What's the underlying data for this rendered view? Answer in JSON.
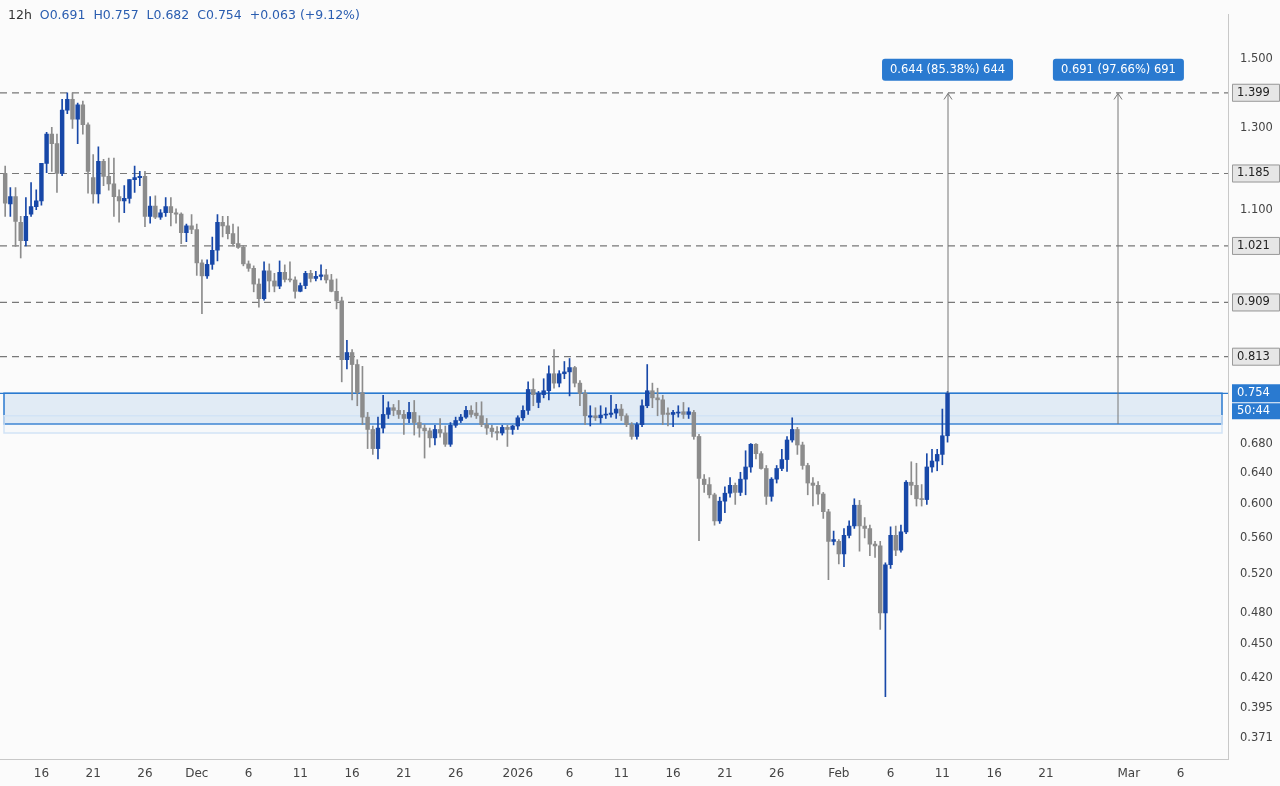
{
  "chart_data": {
    "type": "candlestick",
    "title": "12h",
    "subtitle": "O0.691  H0.757  L0.682  C0.754  +0.063 (+9.12%)",
    "x": [
      "2025-11-12T12:00",
      "2025-11-13",
      "2025-11-13T12:00",
      "2025-11-14",
      "2025-11-14T12:00",
      "2025-11-15",
      "2025-11-15T12:00",
      "2025-11-16",
      "2025-11-16T12:00",
      "2025-11-17",
      "2025-11-17T12:00",
      "2025-11-18",
      "2025-11-18T12:00",
      "2025-11-19",
      "2025-11-19T12:00",
      "2025-11-20",
      "2025-11-20T12:00",
      "2025-11-21",
      "2025-11-21T12:00",
      "2025-11-22",
      "2025-11-22T12:00",
      "2025-11-23",
      "2025-11-23T12:00",
      "2025-11-24",
      "2025-11-24T12:00",
      "2025-11-25",
      "2025-11-25T12:00",
      "2025-11-26",
      "2025-11-26T12:00",
      "2025-11-27",
      "2025-11-27T12:00",
      "2025-11-28",
      "2025-11-28T12:00",
      "2025-11-29",
      "2025-11-29T12:00",
      "2025-11-30",
      "2025-11-30T12:00",
      "2025-12-01",
      "2025-12-01T12:00",
      "2025-12-02",
      "2025-12-02T12:00",
      "2025-12-03",
      "2025-12-03T12:00",
      "2025-12-04",
      "2025-12-04T12:00",
      "2025-12-05",
      "2025-12-05T12:00",
      "2025-12-06",
      "2025-12-06T12:00",
      "2025-12-07",
      "2025-12-07T12:00",
      "2025-12-08",
      "2025-12-08T12:00",
      "2025-12-09",
      "2025-12-09T12:00",
      "2025-12-10",
      "2025-12-10T12:00",
      "2025-12-11",
      "2025-12-11T12:00",
      "2025-12-12",
      "2025-12-12T12:00",
      "2025-12-13",
      "2025-12-13T12:00",
      "2025-12-14",
      "2025-12-14T12:00",
      "2025-12-15",
      "2025-12-15T12:00",
      "2025-12-16",
      "2025-12-16T12:00",
      "2025-12-17",
      "2025-12-17T12:00",
      "2025-12-18",
      "2025-12-18T12:00",
      "2025-12-19",
      "2025-12-19T12:00",
      "2025-12-20",
      "2025-12-20T12:00",
      "2025-12-21",
      "2025-12-21T12:00",
      "2025-12-22",
      "2025-12-22T12:00",
      "2025-12-23",
      "2025-12-23T12:00",
      "2025-12-24",
      "2025-12-24T12:00",
      "2025-12-25",
      "2025-12-25T12:00",
      "2025-12-26",
      "2025-12-26T12:00",
      "2025-12-27",
      "2025-12-27T12:00",
      "2025-12-28",
      "2025-12-28T12:00",
      "2025-12-29",
      "2025-12-29T12:00",
      "2025-12-30",
      "2025-12-30T12:00",
      "2025-12-31",
      "2025-12-31T12:00",
      "2026-01-01",
      "2026-01-01T12:00",
      "2026-01-02",
      "2026-01-02T12:00",
      "2026-01-03",
      "2026-01-03T12:00",
      "2026-01-04",
      "2026-01-04T12:00",
      "2026-01-05",
      "2026-01-05T12:00",
      "2026-01-06",
      "2026-01-06T12:00",
      "2026-01-07",
      "2026-01-07T12:00",
      "2026-01-08",
      "2026-01-08T12:00",
      "2026-01-09",
      "2026-01-09T12:00",
      "2026-01-10",
      "2026-01-10T12:00",
      "2026-01-11",
      "2026-01-11T12:00",
      "2026-01-12",
      "2026-01-12T12:00",
      "2026-01-13",
      "2026-01-13T12:00",
      "2026-01-14",
      "2026-01-14T12:00",
      "2026-01-15",
      "2026-01-15T12:00",
      "2026-01-16",
      "2026-01-16T12:00",
      "2026-01-17",
      "2026-01-17T12:00",
      "2026-01-18",
      "2026-01-18T12:00",
      "2026-01-19",
      "2026-01-19T12:00",
      "2026-01-20",
      "2026-01-20T12:00",
      "2026-01-21",
      "2026-01-21T12:00",
      "2026-01-22",
      "2026-01-22T12:00",
      "2026-01-23",
      "2026-01-23T12:00",
      "2026-01-24",
      "2026-01-24T12:00",
      "2026-01-25",
      "2026-01-25T12:00",
      "2026-01-26",
      "2026-01-26T12:00",
      "2026-01-27",
      "2026-01-27T12:00",
      "2026-01-28",
      "2026-01-28T12:00",
      "2026-01-29",
      "2026-01-29T12:00",
      "2026-01-30",
      "2026-01-30T12:00",
      "2026-01-31",
      "2026-01-31T12:00",
      "2026-02-01",
      "2026-02-01T12:00",
      "2026-02-02",
      "2026-02-02T12:00",
      "2026-02-03",
      "2026-02-03T12:00",
      "2026-02-04",
      "2026-02-04T12:00",
      "2026-02-05",
      "2026-02-05T12:00",
      "2026-02-06",
      "2026-02-06T12:00",
      "2026-02-07",
      "2026-02-07T12:00",
      "2026-02-08",
      "2026-02-08T12:00",
      "2026-02-09",
      "2026-02-09T12:00",
      "2026-02-10",
      "2026-02-10T12:00",
      "2026-02-11",
      "2026-02-11T12:00"
    ],
    "ohlc": [
      [
        1.185,
        1.203,
        1.085,
        1.115
      ],
      [
        1.113,
        1.151,
        1.085,
        1.13
      ],
      [
        1.13,
        1.151,
        1.02,
        1.074
      ],
      [
        1.072,
        1.085,
        0.996,
        1.032
      ],
      [
        1.032,
        1.128,
        1.021,
        1.085
      ],
      [
        1.09,
        1.163,
        1.085,
        1.107
      ],
      [
        1.107,
        1.146,
        1.1,
        1.12
      ],
      [
        1.12,
        1.21,
        1.11,
        1.21
      ],
      [
        1.21,
        1.29,
        1.187,
        1.285
      ],
      [
        1.285,
        1.303,
        1.19,
        1.26
      ],
      [
        1.26,
        1.285,
        1.14,
        1.185
      ],
      [
        1.185,
        1.38,
        1.18,
        1.35
      ],
      [
        1.35,
        1.399,
        1.34,
        1.38
      ],
      [
        1.38,
        1.399,
        1.3,
        1.325
      ],
      [
        1.325,
        1.37,
        1.26,
        1.365
      ],
      [
        1.365,
        1.375,
        1.285,
        1.31
      ],
      [
        1.31,
        1.315,
        1.138,
        1.19
      ],
      [
        1.175,
        1.232,
        1.115,
        1.136
      ],
      [
        1.136,
        1.252,
        1.115,
        1.215
      ],
      [
        1.215,
        1.22,
        1.156,
        1.178
      ],
      [
        1.178,
        1.223,
        1.145,
        1.16
      ],
      [
        1.16,
        1.223,
        1.085,
        1.13
      ],
      [
        1.13,
        1.146,
        1.072,
        1.12
      ],
      [
        1.12,
        1.156,
        1.093,
        1.126
      ],
      [
        1.126,
        1.17,
        1.115,
        1.17
      ],
      [
        1.17,
        1.203,
        1.14,
        1.175
      ],
      [
        1.175,
        1.19,
        1.156,
        1.178
      ],
      [
        1.178,
        1.19,
        1.062,
        1.085
      ],
      [
        1.085,
        1.13,
        1.07,
        1.108
      ],
      [
        1.108,
        1.132,
        1.08,
        1.083
      ],
      [
        1.083,
        1.1,
        1.078,
        1.093
      ],
      [
        1.093,
        1.128,
        1.085,
        1.107
      ],
      [
        1.107,
        1.128,
        1.064,
        1.093
      ],
      [
        1.093,
        1.102,
        1.07,
        1.09
      ],
      [
        1.09,
        1.093,
        1.026,
        1.049
      ],
      [
        1.049,
        1.068,
        1.03,
        1.064
      ],
      [
        1.064,
        1.089,
        1.047,
        1.056
      ],
      [
        1.056,
        1.068,
        0.961,
        0.986
      ],
      [
        0.986,
        0.992,
        0.888,
        0.96
      ],
      [
        0.96,
        0.992,
        0.955,
        0.983
      ],
      [
        0.983,
        1.04,
        0.973,
        1.012
      ],
      [
        1.012,
        1.089,
        0.99,
        1.072
      ],
      [
        1.072,
        1.085,
        1.04,
        1.064
      ],
      [
        1.064,
        1.085,
        1.036,
        1.047
      ],
      [
        1.047,
        1.068,
        1.021,
        1.026
      ],
      [
        1.026,
        1.062,
        1.016,
        1.018
      ],
      [
        1.018,
        1.022,
        0.98,
        0.984
      ],
      [
        0.984,
        0.99,
        0.969,
        0.975
      ],
      [
        0.975,
        0.98,
        0.929,
        0.944
      ],
      [
        0.944,
        0.954,
        0.9,
        0.916
      ],
      [
        0.916,
        0.988,
        0.913,
        0.97
      ],
      [
        0.97,
        0.984,
        0.929,
        0.95
      ],
      [
        0.95,
        0.965,
        0.929,
        0.94
      ],
      [
        0.94,
        0.99,
        0.935,
        0.967
      ],
      [
        0.967,
        0.982,
        0.948,
        0.953
      ],
      [
        0.953,
        0.988,
        0.948,
        0.952
      ],
      [
        0.952,
        0.958,
        0.917,
        0.93
      ],
      [
        0.93,
        0.946,
        0.929,
        0.941
      ],
      [
        0.941,
        0.969,
        0.935,
        0.965
      ],
      [
        0.965,
        0.971,
        0.948,
        0.955
      ],
      [
        0.955,
        0.969,
        0.95,
        0.959
      ],
      [
        0.959,
        0.982,
        0.952,
        0.962
      ],
      [
        0.962,
        0.973,
        0.946,
        0.952
      ],
      [
        0.952,
        0.963,
        0.929,
        0.93
      ],
      [
        0.93,
        0.954,
        0.897,
        0.912
      ],
      [
        0.912,
        0.919,
        0.772,
        0.808
      ],
      [
        0.808,
        0.841,
        0.793,
        0.82
      ],
      [
        0.82,
        0.825,
        0.744,
        0.8
      ],
      [
        0.8,
        0.808,
        0.735,
        0.755
      ],
      [
        0.755,
        0.797,
        0.707,
        0.718
      ],
      [
        0.718,
        0.725,
        0.673,
        0.7
      ],
      [
        0.7,
        0.705,
        0.665,
        0.673
      ],
      [
        0.673,
        0.718,
        0.659,
        0.702
      ],
      [
        0.702,
        0.751,
        0.695,
        0.722
      ],
      [
        0.722,
        0.741,
        0.716,
        0.732
      ],
      [
        0.732,
        0.737,
        0.72,
        0.728
      ],
      [
        0.728,
        0.743,
        0.716,
        0.722
      ],
      [
        0.722,
        0.728,
        0.693,
        0.716
      ],
      [
        0.716,
        0.74,
        0.71,
        0.725
      ],
      [
        0.725,
        0.743,
        0.692,
        0.71
      ],
      [
        0.71,
        0.72,
        0.689,
        0.702
      ],
      [
        0.702,
        0.707,
        0.66,
        0.698
      ],
      [
        0.698,
        0.702,
        0.675,
        0.688
      ],
      [
        0.688,
        0.706,
        0.678,
        0.7
      ],
      [
        0.7,
        0.716,
        0.689,
        0.695
      ],
      [
        0.695,
        0.705,
        0.676,
        0.679
      ],
      [
        0.679,
        0.71,
        0.676,
        0.706
      ],
      [
        0.706,
        0.718,
        0.703,
        0.713
      ],
      [
        0.713,
        0.722,
        0.71,
        0.718
      ],
      [
        0.718,
        0.734,
        0.716,
        0.728
      ],
      [
        0.728,
        0.735,
        0.718,
        0.722
      ],
      [
        0.724,
        0.74,
        0.716,
        0.72
      ],
      [
        0.72,
        0.741,
        0.704,
        0.707
      ],
      [
        0.707,
        0.716,
        0.693,
        0.702
      ],
      [
        0.702,
        0.706,
        0.689,
        0.697
      ],
      [
        0.697,
        0.704,
        0.685,
        0.695
      ],
      [
        0.695,
        0.706,
        0.692,
        0.703
      ],
      [
        0.703,
        0.706,
        0.676,
        0.7
      ],
      [
        0.7,
        0.706,
        0.693,
        0.705
      ],
      [
        0.705,
        0.72,
        0.7,
        0.717
      ],
      [
        0.717,
        0.735,
        0.713,
        0.728
      ],
      [
        0.728,
        0.772,
        0.722,
        0.76
      ],
      [
        0.76,
        0.777,
        0.735,
        0.752
      ],
      [
        0.74,
        0.757,
        0.732,
        0.754
      ],
      [
        0.752,
        0.777,
        0.747,
        0.758
      ],
      [
        0.758,
        0.798,
        0.744,
        0.785
      ],
      [
        0.785,
        0.825,
        0.762,
        0.77
      ],
      [
        0.77,
        0.79,
        0.764,
        0.785
      ],
      [
        0.785,
        0.805,
        0.777,
        0.788
      ],
      [
        0.788,
        0.81,
        0.75,
        0.795
      ],
      [
        0.795,
        0.797,
        0.764,
        0.77
      ],
      [
        0.77,
        0.774,
        0.735,
        0.754
      ],
      [
        0.754,
        0.759,
        0.707,
        0.72
      ],
      [
        0.718,
        0.735,
        0.705,
        0.72
      ],
      [
        0.72,
        0.732,
        0.713,
        0.717
      ],
      [
        0.717,
        0.735,
        0.709,
        0.721
      ],
      [
        0.721,
        0.732,
        0.716,
        0.722
      ],
      [
        0.722,
        0.751,
        0.718,
        0.724
      ],
      [
        0.724,
        0.737,
        0.716,
        0.73
      ],
      [
        0.73,
        0.737,
        0.713,
        0.72
      ],
      [
        0.72,
        0.723,
        0.704,
        0.707
      ],
      [
        0.707,
        0.71,
        0.686,
        0.69
      ],
      [
        0.69,
        0.71,
        0.686,
        0.707
      ],
      [
        0.707,
        0.744,
        0.704,
        0.735
      ],
      [
        0.735,
        0.8,
        0.732,
        0.758
      ],
      [
        0.758,
        0.77,
        0.732,
        0.747
      ],
      [
        0.747,
        0.762,
        0.72,
        0.744
      ],
      [
        0.744,
        0.751,
        0.707,
        0.722
      ],
      [
        0.724,
        0.732,
        0.705,
        0.722
      ],
      [
        0.722,
        0.728,
        0.704,
        0.725
      ],
      [
        0.724,
        0.735,
        0.718,
        0.725
      ],
      [
        0.726,
        0.74,
        0.716,
        0.722
      ],
      [
        0.722,
        0.732,
        0.716,
        0.726
      ],
      [
        0.725,
        0.728,
        0.686,
        0.69
      ],
      [
        0.69,
        0.693,
        0.557,
        0.633
      ],
      [
        0.632,
        0.638,
        0.615,
        0.625
      ],
      [
        0.625,
        0.634,
        0.608,
        0.612
      ],
      [
        0.612,
        0.614,
        0.575,
        0.58
      ],
      [
        0.58,
        0.609,
        0.577,
        0.604
      ],
      [
        0.604,
        0.622,
        0.59,
        0.614
      ],
      [
        0.614,
        0.634,
        0.609,
        0.624
      ],
      [
        0.624,
        0.627,
        0.6,
        0.615
      ],
      [
        0.615,
        0.641,
        0.611,
        0.632
      ],
      [
        0.632,
        0.67,
        0.612,
        0.648
      ],
      [
        0.648,
        0.68,
        0.641,
        0.679
      ],
      [
        0.679,
        0.68,
        0.659,
        0.666
      ],
      [
        0.666,
        0.669,
        0.645,
        0.646
      ],
      [
        0.646,
        0.65,
        0.6,
        0.61
      ],
      [
        0.61,
        0.634,
        0.604,
        0.632
      ],
      [
        0.632,
        0.65,
        0.627,
        0.646
      ],
      [
        0.646,
        0.672,
        0.643,
        0.658
      ],
      [
        0.658,
        0.69,
        0.642,
        0.685
      ],
      [
        0.685,
        0.717,
        0.682,
        0.7
      ],
      [
        0.7,
        0.703,
        0.665,
        0.678
      ],
      [
        0.678,
        0.682,
        0.645,
        0.65
      ],
      [
        0.65,
        0.653,
        0.612,
        0.627
      ],
      [
        0.627,
        0.634,
        0.598,
        0.624
      ],
      [
        0.624,
        0.629,
        0.6,
        0.613
      ],
      [
        0.613,
        0.615,
        0.583,
        0.591
      ],
      [
        0.591,
        0.594,
        0.514,
        0.556
      ],
      [
        0.556,
        0.568,
        0.552,
        0.558
      ],
      [
        0.556,
        0.558,
        0.531,
        0.542
      ],
      [
        0.542,
        0.571,
        0.528,
        0.563
      ],
      [
        0.563,
        0.58,
        0.56,
        0.574
      ],
      [
        0.574,
        0.607,
        0.571,
        0.599
      ],
      [
        0.599,
        0.605,
        0.545,
        0.574
      ],
      [
        0.574,
        0.584,
        0.56,
        0.571
      ],
      [
        0.571,
        0.575,
        0.54,
        0.553
      ],
      [
        0.553,
        0.556,
        0.538,
        0.551
      ],
      [
        0.551,
        0.556,
        0.464,
        0.48
      ],
      [
        0.48,
        0.532,
        0.404,
        0.53
      ],
      [
        0.53,
        0.573,
        0.526,
        0.563
      ],
      [
        0.563,
        0.574,
        0.54,
        0.546
      ],
      [
        0.546,
        0.575,
        0.544,
        0.567
      ],
      [
        0.567,
        0.63,
        0.565,
        0.628
      ],
      [
        0.628,
        0.655,
        0.612,
        0.624
      ],
      [
        0.624,
        0.653,
        0.598,
        0.607
      ],
      [
        0.607,
        0.625,
        0.598,
        0.606
      ],
      [
        0.606,
        0.666,
        0.6,
        0.648
      ],
      [
        0.648,
        0.672,
        0.641,
        0.656
      ],
      [
        0.656,
        0.672,
        0.643,
        0.665
      ],
      [
        0.665,
        0.73,
        0.651,
        0.691
      ],
      [
        0.691,
        0.757,
        0.682,
        0.754
      ]
    ],
    "colors": [
      "#8c8c8c",
      "#1848a8",
      "#8c8c8c",
      "#8c8c8c",
      "#1848a8",
      "#1848a8",
      "#1848a8",
      "#1848a8",
      "#1848a8",
      "#8c8c8c",
      "#8c8c8c",
      "#1848a8",
      "#1848a8",
      "#8c8c8c",
      "#1848a8",
      "#8c8c8c",
      "#8c8c8c",
      "#8c8c8c",
      "#1848a8",
      "#8c8c8c",
      "#8c8c8c",
      "#8c8c8c",
      "#8c8c8c",
      "#1848a8",
      "#1848a8",
      "#1848a8",
      "#1848a8",
      "#8c8c8c",
      "#1848a8",
      "#8c8c8c",
      "#1848a8",
      "#1848a8",
      "#8c8c8c",
      "#8c8c8c",
      "#8c8c8c",
      "#1848a8",
      "#8c8c8c",
      "#8c8c8c",
      "#8c8c8c",
      "#1848a8",
      "#1848a8",
      "#1848a8",
      "#8c8c8c",
      "#8c8c8c",
      "#8c8c8c",
      "#8c8c8c",
      "#8c8c8c",
      "#8c8c8c",
      "#8c8c8c",
      "#8c8c8c",
      "#1848a8",
      "#8c8c8c",
      "#8c8c8c",
      "#1848a8",
      "#8c8c8c",
      "#8c8c8c",
      "#8c8c8c",
      "#1848a8",
      "#1848a8",
      "#8c8c8c",
      "#1848a8",
      "#1848a8",
      "#8c8c8c",
      "#8c8c8c",
      "#8c8c8c",
      "#8c8c8c",
      "#1848a8",
      "#8c8c8c",
      "#8c8c8c",
      "#8c8c8c",
      "#8c8c8c",
      "#8c8c8c",
      "#1848a8",
      "#1848a8",
      "#1848a8",
      "#8c8c8c",
      "#8c8c8c",
      "#8c8c8c",
      "#1848a8",
      "#8c8c8c",
      "#8c8c8c",
      "#8c8c8c",
      "#8c8c8c",
      "#1848a8",
      "#8c8c8c",
      "#8c8c8c",
      "#1848a8",
      "#1848a8",
      "#1848a8",
      "#1848a8",
      "#8c8c8c",
      "#8c8c8c",
      "#8c8c8c",
      "#8c8c8c",
      "#8c8c8c",
      "#8c8c8c",
      "#1848a8",
      "#8c8c8c",
      "#1848a8",
      "#1848a8",
      "#1848a8",
      "#1848a8",
      "#8c8c8c",
      "#1848a8",
      "#1848a8",
      "#1848a8",
      "#8c8c8c",
      "#1848a8",
      "#1848a8",
      "#1848a8",
      "#8c8c8c",
      "#8c8c8c",
      "#8c8c8c",
      "#1848a8",
      "#8c8c8c",
      "#1848a8",
      "#1848a8",
      "#1848a8",
      "#1848a8",
      "#8c8c8c",
      "#8c8c8c",
      "#8c8c8c",
      "#1848a8",
      "#1848a8",
      "#1848a8",
      "#8c8c8c",
      "#8c8c8c",
      "#8c8c8c",
      "#8c8c8c",
      "#1848a8",
      "#1848a8",
      "#8c8c8c",
      "#1848a8",
      "#8c8c8c",
      "#8c8c8c",
      "#8c8c8c",
      "#8c8c8c",
      "#8c8c8c",
      "#1848a8",
      "#1848a8",
      "#1848a8",
      "#8c8c8c",
      "#1848a8",
      "#1848a8",
      "#1848a8",
      "#8c8c8c",
      "#8c8c8c",
      "#8c8c8c",
      "#1848a8",
      "#1848a8",
      "#1848a8",
      "#1848a8",
      "#1848a8",
      "#8c8c8c",
      "#8c8c8c",
      "#8c8c8c",
      "#8c8c8c",
      "#8c8c8c",
      "#8c8c8c",
      "#8c8c8c",
      "#1848a8",
      "#8c8c8c",
      "#1848a8",
      "#1848a8",
      "#1848a8",
      "#8c8c8c",
      "#8c8c8c",
      "#8c8c8c",
      "#8c8c8c",
      "#8c8c8c",
      "#1848a8",
      "#1848a8",
      "#8c8c8c",
      "#1848a8",
      "#1848a8",
      "#8c8c8c",
      "#8c8c8c",
      "#8c8c8c",
      "#1848a8",
      "#1848a8",
      "#1848a8",
      "#1848a8",
      "#1848a8"
    ],
    "xlim": [
      "2025-11-12",
      "2026-03-10T14:00"
    ],
    "xticks": [
      {
        "value": "2025-11-16",
        "label": "16"
      },
      {
        "value": "2025-11-21",
        "label": "21"
      },
      {
        "value": "2025-11-26",
        "label": "26"
      },
      {
        "value": "2025-12-01",
        "label": "Dec"
      },
      {
        "value": "2025-12-06",
        "label": "6"
      },
      {
        "value": "2025-12-11",
        "label": "11"
      },
      {
        "value": "2025-12-16",
        "label": "16"
      },
      {
        "value": "2025-12-21",
        "label": "21"
      },
      {
        "value": "2025-12-26",
        "label": "26"
      },
      {
        "value": "2026-01-01",
        "label": "2026"
      },
      {
        "value": "2026-01-06",
        "label": "6"
      },
      {
        "value": "2026-01-11",
        "label": "11"
      },
      {
        "value": "2026-01-16",
        "label": "16"
      },
      {
        "value": "2026-01-21",
        "label": "21"
      },
      {
        "value": "2026-01-26",
        "label": "26"
      },
      {
        "value": "2026-02-01",
        "label": "Feb"
      },
      {
        "value": "2026-02-06",
        "label": "6"
      },
      {
        "value": "2026-02-11",
        "label": "11"
      },
      {
        "value": "2026-02-16",
        "label": "16"
      },
      {
        "value": "2026-02-21",
        "label": "21"
      },
      {
        "value": "2026-03-01",
        "label": "Mar"
      },
      {
        "value": "2026-03-06",
        "label": "6"
      }
    ],
    "ylim": [
      0.355,
      1.642
    ],
    "log": true,
    "yticks": [
      {
        "value": 1.5,
        "label": "1.500"
      },
      {
        "value": 1.3,
        "label": "1.300"
      },
      {
        "value": 1.1,
        "label": "1.100"
      },
      {
        "value": 0.68,
        "label": "0.680"
      },
      {
        "value": 0.64,
        "label": "0.640"
      },
      {
        "value": 0.6,
        "label": "0.600"
      },
      {
        "value": 0.56,
        "label": "0.560"
      },
      {
        "value": 0.52,
        "label": "0.520"
      },
      {
        "value": 0.48,
        "label": "0.480"
      },
      {
        "value": 0.45,
        "label": "0.450"
      },
      {
        "value": 0.42,
        "label": "0.420"
      },
      {
        "value": 0.395,
        "label": "0.395"
      },
      {
        "value": 0.371,
        "label": "0.371"
      }
    ],
    "ref_lines": [
      {
        "axis": "y",
        "value": 1.399,
        "label": "1.399",
        "line_style": "dashed",
        "color": "#787878"
      },
      {
        "axis": "y",
        "value": 1.185,
        "label": "1.185",
        "line_style": "dashed",
        "color": "#787878"
      },
      {
        "axis": "y",
        "value": 1.021,
        "label": "1.021",
        "line_style": "dashed",
        "color": "#787878"
      },
      {
        "axis": "y",
        "value": 0.909,
        "label": "0.909",
        "line_style": "dashed",
        "color": "#787878"
      },
      {
        "axis": "y",
        "value": 0.813,
        "label": "0.813",
        "line_style": "dashed",
        "color": "#787878"
      },
      {
        "axis": "y",
        "value": 0.754,
        "label": "0.754",
        "line_style": "solid",
        "color": "#2a7ad0"
      }
    ],
    "bands": [
      {
        "axis": "y",
        "from": 0.708,
        "to": 0.754,
        "color": "#2a7ad0"
      },
      {
        "axis": "y",
        "from": 0.695,
        "to": 0.72,
        "color": "#d2e3f6"
      }
    ],
    "annotations": [
      {
        "text": "0.644 (85.38%) 644",
        "x": "2026-02-11T12:00",
        "y": 1.399
      },
      {
        "text": "0.691 (97.66%) 691",
        "x": "2026-02-28",
        "y": 1.399
      },
      "50:44"
    ],
    "grid": false,
    "legend": false
  }
}
